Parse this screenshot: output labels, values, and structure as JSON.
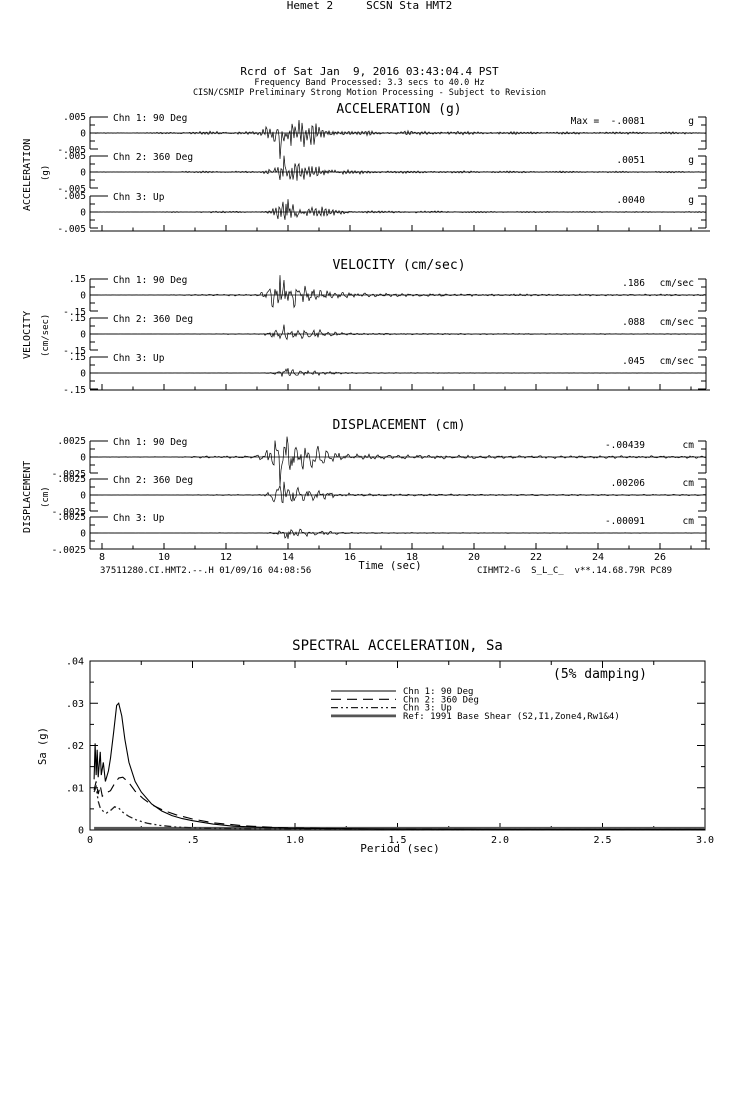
{
  "header": {
    "station_line": "Hemet 2     SCSN Sta HMT2",
    "record_line": "Rcrd of Sat Jan  9, 2016 03:43:04.4 PST",
    "band_line": "Frequency Band Processed: 3.3 secs to 40.0 Hz",
    "disclaimer_line": "CISN/CSMIP Preliminary Strong Motion Processing - Subject to Revision"
  },
  "footer": {
    "left_text": "37511280.CI.HMT2.--.H 01/09/16 04:08:56",
    "right_text": "CIHMT2-G  S_L_C_  v**.14.68.79R PC89"
  },
  "time_series": {
    "time_axis": {
      "label": "Time (sec)",
      "tick_labels": [
        "8",
        "10",
        "12",
        "14",
        "16",
        "18",
        "20",
        "22",
        "24",
        "26"
      ],
      "minor_step_sec": 1
    },
    "panels": [
      {
        "id": "acceleration",
        "title": "ACCELERATION (g)",
        "side_label": "ACCELERATION",
        "side_unit": "(g)",
        "scale": 0.005,
        "pos_label": ".005",
        "zero_label": "0",
        "neg_label": "-.005",
        "channels": [
          {
            "label": "Chn 1: 90 Deg",
            "peak_text": "Max =  -.0081",
            "unit": "g",
            "peak_value": -0.0081
          },
          {
            "label": "Chn 2: 360 Deg",
            "peak_text": ".0051",
            "unit": "g",
            "peak_value": 0.0051
          },
          {
            "label": "Chn 3: Up",
            "peak_text": ".0040",
            "unit": "g",
            "peak_value": 0.004
          }
        ]
      },
      {
        "id": "velocity",
        "title": "VELOCITY (cm/sec)",
        "side_label": "VELOCITY",
        "side_unit": "(cm/sec)",
        "scale": 0.15,
        "pos_label": ".15",
        "zero_label": "0",
        "neg_label": "-.15",
        "channels": [
          {
            "label": "Chn 1: 90 Deg",
            "peak_text": ".186",
            "unit": "cm/sec",
            "peak_value": 0.186
          },
          {
            "label": "Chn 2: 360 Deg",
            "peak_text": ".088",
            "unit": "cm/sec",
            "peak_value": 0.088
          },
          {
            "label": "Chn 3: Up",
            "peak_text": ".045",
            "unit": "cm/sec",
            "peak_value": 0.045
          }
        ]
      },
      {
        "id": "displacement",
        "title": "DISPLACEMENT (cm)",
        "side_label": "DISPLACEMENT",
        "side_unit": "(cm)",
        "scale": 0.0025,
        "pos_label": ".0025",
        "zero_label": "0",
        "neg_label": "-.0025",
        "channels": [
          {
            "label": "Chn 1: 90 Deg",
            "peak_text": "-.00439",
            "unit": "cm",
            "peak_value": -0.00439
          },
          {
            "label": "Chn 2: 360 Deg",
            "peak_text": ".00206",
            "unit": "cm",
            "peak_value": 0.00206
          },
          {
            "label": "Chn 3: Up",
            "peak_text": "-.00091",
            "unit": "cm",
            "peak_value": -0.00091
          }
        ]
      }
    ]
  },
  "chart_data": [
    {
      "id": "spectral_acceleration",
      "type": "line",
      "title": "SPECTRAL ACCELERATION, Sa",
      "annotation": "(5% damping)",
      "xlabel": "Period (sec)",
      "ylabel": "Sa (g)",
      "xlim": [
        0,
        3.0
      ],
      "ylim": [
        0,
        0.04
      ],
      "xticks": [
        0,
        0.5,
        1.0,
        1.5,
        2.0,
        2.5,
        3.0
      ],
      "xtick_labels": [
        "0",
        ".5",
        "1.0",
        "1.5",
        "2.0",
        "2.5",
        "3.0"
      ],
      "yticks": [
        0,
        0.01,
        0.02,
        0.03,
        0.04
      ],
      "ytick_labels": [
        "0",
        ".01",
        ".02",
        ".03",
        ".04"
      ],
      "grid": false,
      "legend_position": "upper center",
      "series": [
        {
          "name": "Chn 1: 90 Deg",
          "style": "solid",
          "points": [
            [
              0.02,
              0.012
            ],
            [
              0.025,
              0.0205
            ],
            [
              0.03,
              0.013
            ],
            [
              0.035,
              0.019
            ],
            [
              0.04,
              0.0125
            ],
            [
              0.05,
              0.0185
            ],
            [
              0.055,
              0.013
            ],
            [
              0.065,
              0.016
            ],
            [
              0.075,
              0.0115
            ],
            [
              0.09,
              0.014
            ],
            [
              0.1,
              0.017
            ],
            [
              0.115,
              0.023
            ],
            [
              0.13,
              0.0295
            ],
            [
              0.14,
              0.03
            ],
            [
              0.155,
              0.027
            ],
            [
              0.17,
              0.0215
            ],
            [
              0.19,
              0.016
            ],
            [
              0.22,
              0.0115
            ],
            [
              0.25,
              0.009
            ],
            [
              0.3,
              0.0062
            ],
            [
              0.35,
              0.0045
            ],
            [
              0.4,
              0.0034
            ],
            [
              0.45,
              0.0027
            ],
            [
              0.5,
              0.0022
            ],
            [
              0.6,
              0.0014
            ],
            [
              0.7,
              0.0009
            ],
            [
              0.85,
              0.0006
            ],
            [
              1.0,
              0.0004
            ],
            [
              1.25,
              0.0003
            ],
            [
              1.5,
              0.0002
            ],
            [
              2.0,
              0.0001
            ],
            [
              2.5,
              0.0001
            ],
            [
              3.0,
              0.0001
            ]
          ]
        },
        {
          "name": "Chn 2: 360 Deg",
          "style": "long-dash",
          "points": [
            [
              0.02,
              0.0095
            ],
            [
              0.03,
              0.0115
            ],
            [
              0.04,
              0.0085
            ],
            [
              0.05,
              0.0105
            ],
            [
              0.06,
              0.008
            ],
            [
              0.08,
              0.0088
            ],
            [
              0.1,
              0.0093
            ],
            [
              0.12,
              0.011
            ],
            [
              0.14,
              0.0123
            ],
            [
              0.16,
              0.0125
            ],
            [
              0.19,
              0.0112
            ],
            [
              0.22,
              0.0092
            ],
            [
              0.26,
              0.0074
            ],
            [
              0.3,
              0.006
            ],
            [
              0.36,
              0.0046
            ],
            [
              0.42,
              0.0036
            ],
            [
              0.5,
              0.0026
            ],
            [
              0.6,
              0.0017
            ],
            [
              0.75,
              0.001
            ],
            [
              0.9,
              0.0006
            ],
            [
              1.1,
              0.0004
            ],
            [
              1.4,
              0.0002
            ],
            [
              2.0,
              0.0001
            ],
            [
              3.0,
              0.0001
            ]
          ]
        },
        {
          "name": "Chn 3: Up",
          "style": "dash-dot-dot",
          "points": [
            [
              0.02,
              0.009
            ],
            [
              0.03,
              0.0102
            ],
            [
              0.04,
              0.0068
            ],
            [
              0.05,
              0.0052
            ],
            [
              0.065,
              0.0044
            ],
            [
              0.08,
              0.004
            ],
            [
              0.1,
              0.0046
            ],
            [
              0.12,
              0.0055
            ],
            [
              0.14,
              0.0052
            ],
            [
              0.16,
              0.0042
            ],
            [
              0.19,
              0.0032
            ],
            [
              0.23,
              0.0023
            ],
            [
              0.28,
              0.0016
            ],
            [
              0.34,
              0.0011
            ],
            [
              0.42,
              0.0007
            ],
            [
              0.55,
              0.0004
            ],
            [
              0.75,
              0.0003
            ],
            [
              1.0,
              0.0002
            ],
            [
              1.5,
              0.0001
            ],
            [
              3.0,
              0.0001
            ]
          ]
        },
        {
          "name": "Ref: 1991 Base Shear (S2,I1,Zone4,Rw1&4)",
          "style": "thick-solid",
          "points": [
            [
              0.02,
              0.0004
            ],
            [
              3.0,
              0.0004
            ]
          ],
          "note": "curve lies along the x-axis; not distinguishable within plotted Sa range"
        }
      ]
    },
    {
      "id": "strong_motion_time_series",
      "type": "line",
      "xlabel": "Time (sec)",
      "x_range_sec": [
        8,
        26
      ],
      "note": "Nine waveform traces; only peak values are annotated on the plot",
      "series": [
        {
          "name": "Acceleration Chn 1: 90 Deg",
          "peak": -0.0081,
          "unit": "g"
        },
        {
          "name": "Acceleration Chn 2: 360 Deg",
          "peak": 0.0051,
          "unit": "g"
        },
        {
          "name": "Acceleration Chn 3: Up",
          "peak": 0.004,
          "unit": "g"
        },
        {
          "name": "Velocity Chn 1: 90 Deg",
          "peak": 0.186,
          "unit": "cm/sec"
        },
        {
          "name": "Velocity Chn 2: 360 Deg",
          "peak": 0.088,
          "unit": "cm/sec"
        },
        {
          "name": "Velocity Chn 3: Up",
          "peak": 0.045,
          "unit": "cm/sec"
        },
        {
          "name": "Displacement Chn 1: 90 Deg",
          "peak": -0.00439,
          "unit": "cm"
        },
        {
          "name": "Displacement Chn 2: 360 Deg",
          "peak": 0.00206,
          "unit": "cm"
        },
        {
          "name": "Displacement Chn 3: Up",
          "peak": -0.00091,
          "unit": "cm"
        }
      ]
    }
  ]
}
